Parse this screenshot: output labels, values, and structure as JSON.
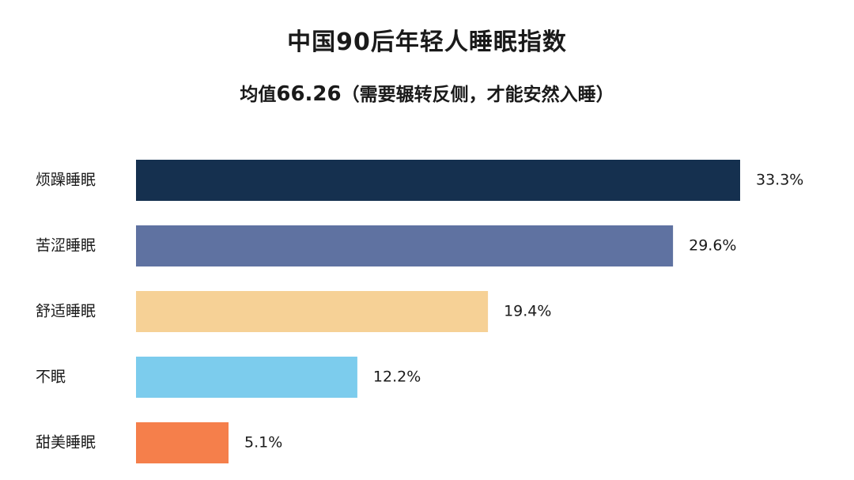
{
  "title": "中国90后年轻人睡眠指数",
  "subtitle": {
    "prefix": "均值",
    "value": "66.26",
    "suffix": "（需要辗转反侧，才能安然入睡）"
  },
  "chart_data": {
    "type": "bar",
    "orientation": "horizontal",
    "title": "中国90后年轻人睡眠指数",
    "subtitle": "均值66.26（需要辗转反侧，才能安然入睡）",
    "xlabel": "",
    "ylabel": "",
    "grid": false,
    "categories": [
      "烦躁睡眠",
      "苦涩睡眠",
      "舒适睡眠",
      "不眠",
      "甜美睡眠"
    ],
    "values": [
      33.3,
      29.6,
      19.4,
      12.2,
      5.1
    ],
    "value_labels": [
      "33.3%",
      "29.6%",
      "19.4%",
      "12.2%",
      "5.1%"
    ],
    "colors": [
      "#15304f",
      "#5f72a1",
      "#f6d196",
      "#7ccced",
      "#f57f4b"
    ]
  }
}
